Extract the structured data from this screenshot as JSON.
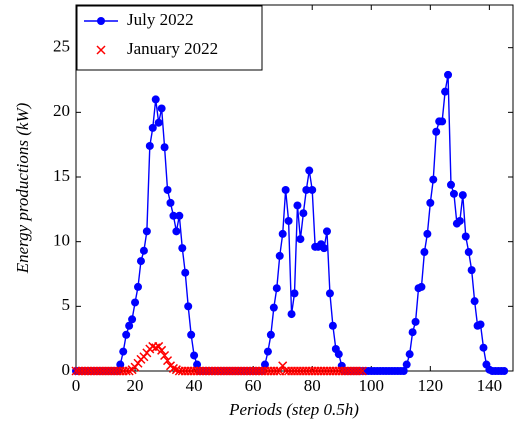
{
  "chart_data": {
    "type": "line",
    "xlabel": "Periods (step 0.5h)",
    "ylabel": "Energy productions (kW)",
    "x": [
      0,
      1,
      2,
      3,
      4,
      5,
      6,
      7,
      8,
      9,
      10,
      11,
      12,
      13,
      14,
      15,
      16,
      17,
      18,
      19,
      20,
      21,
      22,
      23,
      24,
      25,
      26,
      27,
      28,
      29,
      30,
      31,
      32,
      33,
      34,
      35,
      36,
      37,
      38,
      39,
      40,
      41,
      42,
      43,
      44,
      45,
      46,
      47,
      48,
      49,
      50,
      51,
      52,
      53,
      54,
      55,
      56,
      57,
      58,
      59,
      60,
      61,
      62,
      63,
      64,
      65,
      66,
      67,
      68,
      69,
      70,
      71,
      72,
      73,
      74,
      75,
      76,
      77,
      78,
      79,
      80,
      81,
      82,
      83,
      84,
      85,
      86,
      87,
      88,
      89,
      90,
      91,
      92,
      93,
      94,
      95,
      96,
      97,
      98,
      99,
      100,
      101,
      102,
      103,
      104,
      105,
      106,
      107,
      108,
      109,
      110,
      111,
      112,
      113,
      114,
      115,
      116,
      117,
      118,
      119,
      120,
      121,
      122,
      123,
      124,
      125,
      126,
      127,
      128,
      129,
      130,
      131,
      132,
      133,
      134,
      135,
      136,
      137,
      138,
      139,
      140,
      141,
      142,
      143,
      144,
      145
    ],
    "series": [
      {
        "name": "July 2022",
        "color": "#0000ff",
        "marker": "circle",
        "values": [
          0,
          0,
          0,
          0,
          0,
          0,
          0,
          0,
          0,
          0,
          0,
          0,
          0,
          0,
          0,
          0.5,
          1.5,
          2.8,
          3.5,
          4,
          5.3,
          6.5,
          8.5,
          9.3,
          10.8,
          17.4,
          18.8,
          21,
          19.2,
          20.3,
          17.3,
          14,
          13,
          12,
          10.8,
          12,
          9.5,
          7.6,
          5,
          2.8,
          1.2,
          0.5,
          0,
          0,
          0,
          0,
          0,
          0,
          0,
          0,
          0,
          0,
          0,
          0,
          0,
          0,
          0,
          0,
          0,
          0,
          0,
          0,
          0,
          0,
          0.5,
          1.5,
          2.8,
          4.9,
          6.4,
          8.9,
          10.6,
          14,
          11.6,
          4.4,
          6,
          12.8,
          10.2,
          12.2,
          14,
          15.5,
          14,
          9.6,
          9.6,
          9.8,
          9.5,
          10.8,
          6,
          3.5,
          1.7,
          1.3,
          0.4,
          0,
          0,
          0,
          0,
          0,
          0,
          0,
          0,
          0,
          0,
          0,
          0,
          0,
          0,
          0,
          0,
          0,
          0,
          0,
          0,
          0,
          0.5,
          1.3,
          3,
          3.8,
          6.4,
          6.5,
          9.2,
          10.6,
          13,
          14.8,
          18.5,
          19.3,
          19.3,
          21.6,
          22.9,
          14.4,
          13.7,
          11.4,
          11.6,
          13.6,
          10.4,
          9.2,
          7.8,
          5.4,
          3.5,
          3.6,
          1.8,
          0.5,
          0.1,
          0,
          0,
          0,
          0,
          0
        ]
      },
      {
        "name": "January 2022",
        "color": "#ff0000",
        "marker": "cross",
        "values": [
          0,
          0,
          0,
          0,
          0,
          0,
          0,
          0,
          0,
          0,
          0,
          0,
          0,
          0,
          0,
          0,
          0,
          0,
          0,
          0.1,
          0.3,
          0.6,
          0.9,
          1.1,
          1.4,
          1.7,
          1.9,
          1.8,
          1.9,
          1.6,
          1.2,
          0.8,
          0.4,
          0.2,
          0.1,
          0,
          0,
          0,
          0,
          0,
          0,
          0,
          0,
          0,
          0,
          0,
          0,
          0,
          0,
          0,
          0,
          0,
          0,
          0,
          0,
          0,
          0,
          0,
          0,
          0,
          0,
          0,
          0,
          0,
          0,
          0,
          0,
          0,
          0,
          0,
          0.4,
          0,
          0,
          0,
          0,
          0,
          0,
          0,
          0,
          0,
          0,
          0,
          0,
          0,
          0,
          0,
          0,
          0,
          0,
          0,
          0,
          0,
          0,
          0,
          0,
          0,
          0,
          0,
          null,
          null,
          null,
          null,
          null,
          null,
          null,
          null,
          null,
          null,
          null,
          null,
          null,
          null,
          null,
          null,
          null,
          null,
          null,
          null,
          null,
          null,
          null,
          null,
          null,
          null,
          null,
          null,
          null,
          null,
          null,
          null,
          null,
          null,
          null,
          null,
          null,
          null,
          null,
          null,
          null,
          null,
          null,
          null,
          null,
          null,
          null,
          null
        ]
      }
    ],
    "xlim": [
      0,
      148
    ],
    "xticks": [
      0,
      20,
      40,
      60,
      80,
      100,
      120,
      140
    ],
    "ylim": [
      0,
      28.3
    ],
    "yticks": [
      0,
      5,
      10,
      15,
      20,
      25
    ],
    "legend": "upper left"
  }
}
